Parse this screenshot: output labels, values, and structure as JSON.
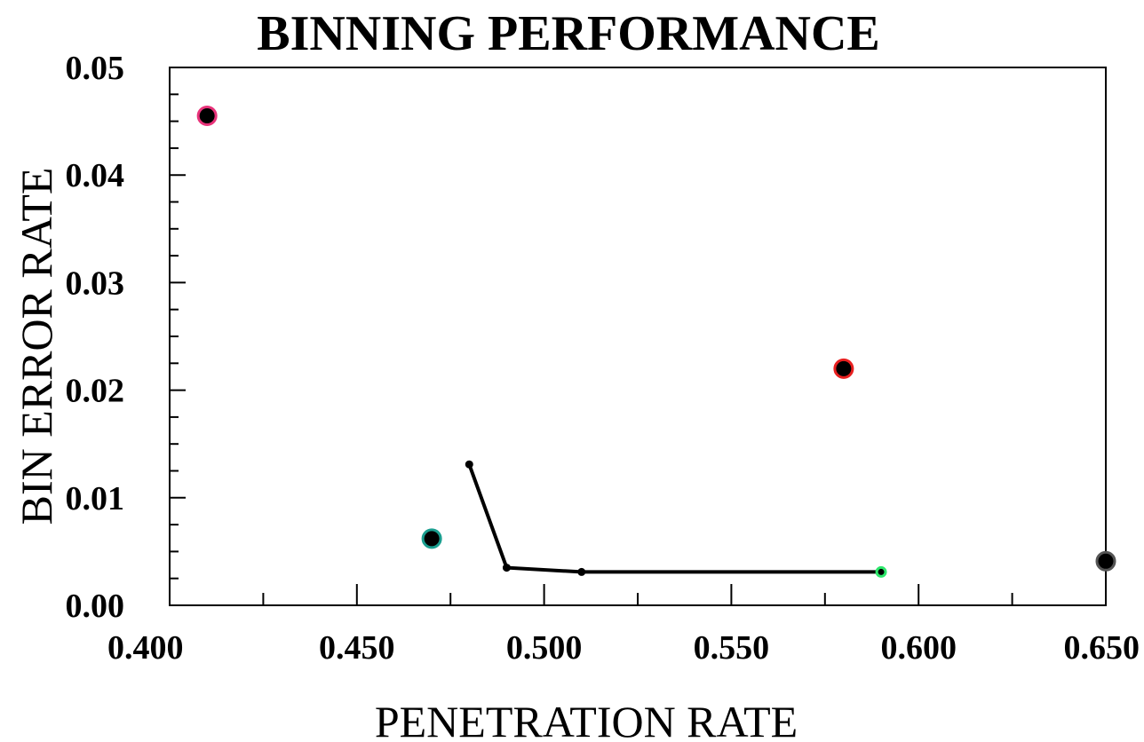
{
  "chart_data": {
    "type": "scatter",
    "title": "BINNING PERFORMANCE",
    "xlabel": "PENETRATION RATE",
    "ylabel": "BIN ERROR RATE",
    "xlim": [
      0.4,
      0.65
    ],
    "ylim": [
      0.0,
      0.05
    ],
    "x_tick_labels": [
      "0.400",
      "0.450",
      "0.500",
      "0.550",
      "0.600",
      "0.650"
    ],
    "y_tick_labels": [
      "0.00",
      "0.01",
      "0.02",
      "0.03",
      "0.04",
      "0.05"
    ],
    "grid": false,
    "points": [
      {
        "x": 0.41,
        "y": 0.0455,
        "color": "#e8337a"
      },
      {
        "x": 0.47,
        "y": 0.0062,
        "color": "#1a9e8f"
      },
      {
        "x": 0.58,
        "y": 0.022,
        "color": "#e82020"
      },
      {
        "x": 0.65,
        "y": 0.0041,
        "color": "#555555"
      }
    ],
    "line_series": {
      "x": [
        0.48,
        0.49,
        0.51,
        0.59
      ],
      "y": [
        0.0131,
        0.0035,
        0.0031,
        0.0031
      ],
      "endpoint_color": "#2ee66b"
    }
  }
}
